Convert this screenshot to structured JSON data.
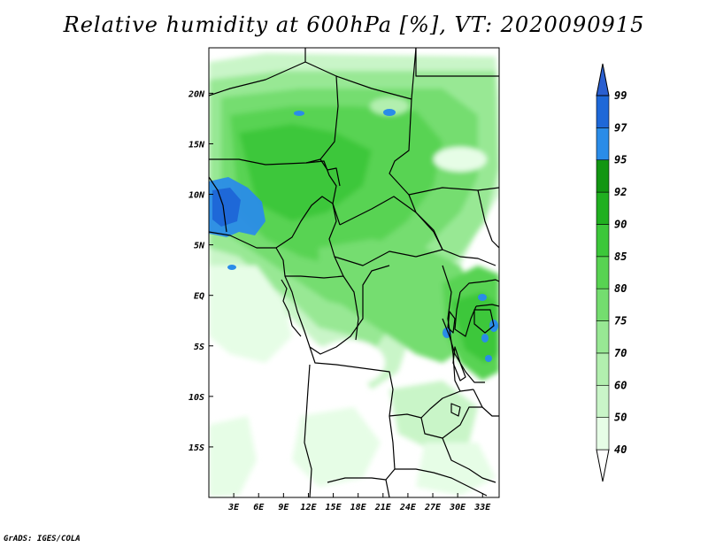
{
  "title": "Relative humidity at 600hPa [%], VT: 2020090915",
  "credit": "GrADS: IGES/COLA",
  "map": {
    "lon_range": [
      0,
      35
    ],
    "lat_range": [
      -20,
      24.5
    ],
    "lon_ticks": [
      {
        "lon": 3,
        "label": "3E"
      },
      {
        "lon": 6,
        "label": "6E"
      },
      {
        "lon": 9,
        "label": "9E"
      },
      {
        "lon": 12,
        "label": "12E"
      },
      {
        "lon": 15,
        "label": "15E"
      },
      {
        "lon": 18,
        "label": "18E"
      },
      {
        "lon": 21,
        "label": "21E"
      },
      {
        "lon": 24,
        "label": "24E"
      },
      {
        "lon": 27,
        "label": "27E"
      },
      {
        "lon": 30,
        "label": "30E"
      },
      {
        "lon": 33,
        "label": "33E"
      }
    ],
    "lat_ticks": [
      {
        "lat": 20,
        "label": "20N"
      },
      {
        "lat": 15,
        "label": "15N"
      },
      {
        "lat": 10,
        "label": "10N"
      },
      {
        "lat": 5,
        "label": "5N"
      },
      {
        "lat": 0,
        "label": "EQ"
      },
      {
        "lat": -5,
        "label": "5S"
      },
      {
        "lat": -10,
        "label": "10S"
      },
      {
        "lat": -15,
        "label": "15S"
      }
    ]
  },
  "colorbar": {
    "levels": [
      "40",
      "50",
      "60",
      "70",
      "75",
      "80",
      "85",
      "90",
      "92",
      "95",
      "97",
      "99"
    ],
    "colors": [
      "#ffffff",
      "#e6fde6",
      "#c9f5c8",
      "#b2efaf",
      "#98e894",
      "#74dd6f",
      "#58d352",
      "#3cc73a",
      "#20b020",
      "#129612",
      "#2a8ce8",
      "#1e68d8",
      "#2a5fd0"
    ]
  }
}
